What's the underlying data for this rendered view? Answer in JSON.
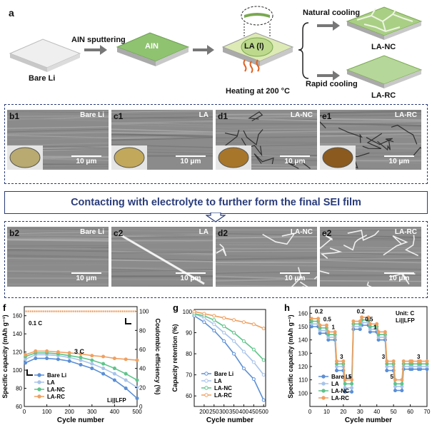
{
  "schematic": {
    "panel": "a",
    "bare_li": "Bare Li",
    "ain_sputtering": "AIN sputtering",
    "ain": "AIN",
    "la_l": "LA (l)",
    "heating": "Heating at 200 °C",
    "natural_cooling": "Natural cooling",
    "rapid_cooling": "Rapid cooling",
    "la_nc": "LA-NC",
    "la_rc": "LA-RC"
  },
  "sem_top": [
    {
      "panel": "b1",
      "name": "Bare Li",
      "scale": "10 μm"
    },
    {
      "panel": "c1",
      "name": "LA",
      "scale": "10 μm"
    },
    {
      "panel": "d1",
      "name": "LA-NC",
      "scale": "10 μm"
    },
    {
      "panel": "e1",
      "name": "LA-RC",
      "scale": "10 μm"
    }
  ],
  "banner": "Contacting with electrolyte to further form the final SEI film",
  "sem_bottom": [
    {
      "panel": "b2",
      "name": "Bare Li",
      "scale": "10 μm"
    },
    {
      "panel": "c2",
      "name": "LA",
      "scale": "10 μm"
    },
    {
      "panel": "d2",
      "name": "LA-NC",
      "scale": "10 μm"
    },
    {
      "panel": "e2",
      "name": "LA-RC",
      "scale": "10 μm"
    }
  ],
  "colors": {
    "bare_li": "#5b8fd6",
    "la": "#a8c4ea",
    "la_nc": "#5fc48a",
    "la_rc": "#f0a060",
    "navy": "#2a3c7a"
  },
  "chart_data": [
    {
      "panel": "f",
      "type": "line",
      "xlabel": "Cycle number",
      "ylabel": "Specific capacity (mAh g⁻¹)",
      "y2label": "Coulombic efficiency (%)",
      "xlim": [
        0,
        500
      ],
      "ylim": [
        60,
        170
      ],
      "y2lim": [
        0,
        105
      ],
      "xticks": [
        0,
        100,
        200,
        300,
        400,
        500
      ],
      "yticks": [
        60,
        80,
        100,
        120,
        140,
        160
      ],
      "y2ticks": [
        0,
        20,
        40,
        60,
        80,
        100
      ],
      "annotations": [
        "0.1 C",
        "3 C",
        "Li||LFP"
      ],
      "series": [
        {
          "name": "Bare Li",
          "x": [
            5,
            50,
            100,
            150,
            200,
            250,
            300,
            350,
            400,
            450,
            500
          ],
          "y": [
            108,
            113,
            113,
            112,
            110,
            106,
            102,
            96,
            89,
            80,
            69
          ]
        },
        {
          "name": "LA",
          "x": [
            5,
            50,
            100,
            150,
            200,
            250,
            300,
            350,
            400,
            450,
            500
          ],
          "y": [
            112,
            117,
            117,
            116,
            114,
            111,
            107,
            102,
            96,
            89,
            81
          ]
        },
        {
          "name": "LA-NC",
          "x": [
            5,
            50,
            100,
            150,
            200,
            250,
            300,
            350,
            400,
            450,
            500
          ],
          "y": [
            115,
            119,
            119,
            118,
            116,
            114,
            111,
            107,
            102,
            96,
            89
          ]
        },
        {
          "name": "LA-RC",
          "x": [
            5,
            50,
            100,
            150,
            200,
            250,
            300,
            350,
            400,
            450,
            500
          ],
          "y": [
            117,
            121,
            121,
            120,
            119,
            118,
            116,
            115,
            113,
            112,
            111
          ]
        }
      ],
      "ce_series": {
        "x": [
          5,
          100,
          200,
          300,
          400,
          500
        ],
        "y": [
          100,
          100,
          100,
          100,
          100,
          100
        ]
      }
    },
    {
      "panel": "g",
      "type": "line",
      "xlabel": "Cycle number",
      "ylabel": "Capacity retention (%)",
      "xlim": [
        150,
        510
      ],
      "ylim": [
        55,
        101
      ],
      "xticks": [
        200,
        250,
        300,
        350,
        400,
        450,
        500
      ],
      "yticks": [
        60,
        70,
        80,
        90,
        100
      ],
      "series": [
        {
          "name": "Bare Li",
          "x": [
            150,
            200,
            250,
            300,
            350,
            400,
            450,
            500
          ],
          "y": [
            98,
            95,
            91,
            86,
            80,
            73,
            68,
            58
          ]
        },
        {
          "name": "LA",
          "x": [
            150,
            200,
            250,
            300,
            350,
            400,
            450,
            500
          ],
          "y": [
            99,
            97,
            94,
            90,
            86,
            81,
            76,
            70
          ]
        },
        {
          "name": "LA-NC",
          "x": [
            150,
            200,
            250,
            300,
            350,
            400,
            450,
            500
          ],
          "y": [
            99,
            98,
            96,
            93,
            90,
            86,
            82,
            77
          ]
        },
        {
          "name": "LA-RC",
          "x": [
            150,
            200,
            250,
            300,
            350,
            400,
            450,
            500
          ],
          "y": [
            100,
            99,
            98,
            97,
            96,
            95,
            94,
            92
          ]
        }
      ]
    },
    {
      "panel": "h",
      "type": "line",
      "xlabel": "Cycle number",
      "ylabel": "Specific capacity (mAh g⁻¹)",
      "xlim": [
        0,
        70
      ],
      "ylim": [
        90,
        165
      ],
      "xticks": [
        0,
        10,
        20,
        30,
        40,
        50,
        60,
        70
      ],
      "yticks": [
        100,
        110,
        120,
        130,
        140,
        150,
        160
      ],
      "annotations": [
        "Unit: C",
        "Li||LFP"
      ],
      "rate_labels": [
        "0.2",
        "0.5",
        "1",
        "3",
        "5",
        "0.2",
        "0.5",
        "1",
        "3",
        "5",
        "3"
      ],
      "series": [
        {
          "name": "Bare Li",
          "x": [
            1,
            5,
            6,
            10,
            11,
            15,
            16,
            20,
            21,
            25,
            26,
            30,
            31,
            35,
            36,
            40,
            41,
            45,
            46,
            50,
            51,
            55,
            56,
            60,
            61,
            65,
            66,
            70
          ],
          "y": [
            150,
            150,
            145,
            145,
            140,
            140,
            117,
            117,
            101,
            101,
            148,
            148,
            151,
            151,
            146,
            146,
            140,
            140,
            117,
            117,
            102,
            102,
            118,
            118,
            118,
            118,
            118,
            118
          ]
        },
        {
          "name": "LA",
          "x": [
            1,
            5,
            6,
            10,
            11,
            15,
            16,
            20,
            21,
            25,
            26,
            30,
            31,
            35,
            36,
            40,
            41,
            45,
            46,
            50,
            51,
            55,
            56,
            60,
            61,
            65,
            66,
            70
          ],
          "y": [
            152,
            152,
            147,
            147,
            142,
            142,
            120,
            120,
            104,
            104,
            150,
            150,
            153,
            153,
            148,
            148,
            142,
            142,
            120,
            120,
            105,
            105,
            120,
            120,
            120,
            120,
            120,
            120
          ]
        },
        {
          "name": "LA-NC",
          "x": [
            1,
            5,
            6,
            10,
            11,
            15,
            16,
            20,
            21,
            25,
            26,
            30,
            31,
            35,
            36,
            40,
            41,
            45,
            46,
            50,
            51,
            55,
            56,
            60,
            61,
            65,
            66,
            70
          ],
          "y": [
            154,
            154,
            149,
            149,
            144,
            144,
            122,
            122,
            107,
            107,
            152,
            152,
            155,
            155,
            150,
            150,
            144,
            144,
            122,
            122,
            107,
            107,
            122,
            122,
            122,
            122,
            122,
            122
          ]
        },
        {
          "name": "LA-RC",
          "x": [
            1,
            5,
            6,
            10,
            11,
            15,
            16,
            20,
            21,
            25,
            26,
            30,
            31,
            35,
            36,
            40,
            41,
            45,
            46,
            50,
            51,
            55,
            56,
            60,
            61,
            65,
            66,
            70
          ],
          "y": [
            156,
            156,
            151,
            151,
            146,
            146,
            124,
            124,
            110,
            110,
            154,
            154,
            157,
            157,
            152,
            152,
            146,
            146,
            124,
            124,
            110,
            110,
            124,
            124,
            124,
            124,
            124,
            124
          ]
        }
      ]
    }
  ]
}
